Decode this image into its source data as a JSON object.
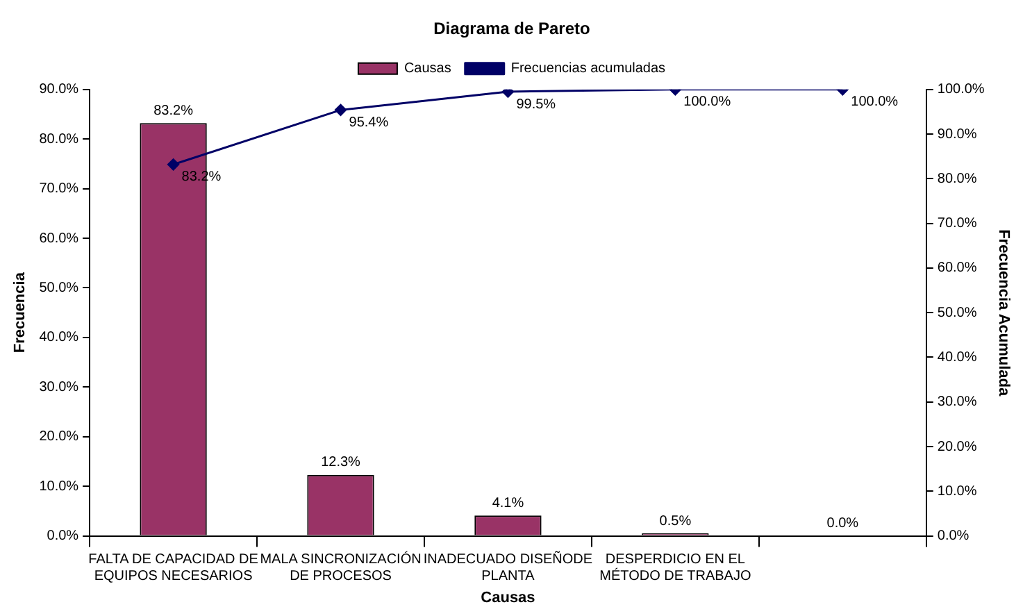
{
  "chart_data": {
    "type": "bar",
    "title": "Diagrama de Pareto",
    "xlabel": "Causas",
    "ylabel": "Frecuencia",
    "y2label": "Frecuencia Acumulada",
    "categories": [
      "FALTA DE CAPACIDAD DE EQUIPOS NECESARIOS",
      "MALA SINCRONIZACIÓN DE PROCESOS",
      "INADECUADO DISEÑODE PLANTA",
      "DESPERDICIO EN EL MÉTODO DE TRABAJO",
      null
    ],
    "series": [
      {
        "name": "Causas",
        "color": "#993366",
        "values": [
          83.2,
          12.3,
          4.1,
          0.5,
          0.0
        ],
        "value_labels": [
          "83.2%",
          "12.3%",
          "4.1%",
          "0.5%",
          "0.0%"
        ]
      },
      {
        "name": "Frecuencias acumuladas",
        "type": "line",
        "axis": "y2",
        "color": "#000066",
        "marker": "diamond",
        "values": [
          83.2,
          95.4,
          99.5,
          100.0,
          100.0
        ],
        "value_labels": [
          "83.2%",
          "95.4%",
          "99.5%",
          "100.0%",
          "100.0%"
        ]
      }
    ],
    "ylim": [
      0,
      90
    ],
    "yticks": [
      {
        "value": 0,
        "label": "0.0%"
      },
      {
        "value": 10,
        "label": "10.0%"
      },
      {
        "value": 20,
        "label": "20.0%"
      },
      {
        "value": 30,
        "label": "30.0%"
      },
      {
        "value": 40,
        "label": "40.0%"
      },
      {
        "value": 50,
        "label": "50.0%"
      },
      {
        "value": 60,
        "label": "60.0%"
      },
      {
        "value": 70,
        "label": "70.0%"
      },
      {
        "value": 80,
        "label": "80.0%"
      },
      {
        "value": 90,
        "label": "90.0%"
      }
    ],
    "y2lim": [
      0,
      100
    ],
    "y2ticks": [
      {
        "value": 0,
        "label": "0.0%"
      },
      {
        "value": 10,
        "label": "10.0%"
      },
      {
        "value": 20,
        "label": "20.0%"
      },
      {
        "value": 30,
        "label": "30.0%"
      },
      {
        "value": 40,
        "label": "40.0%"
      },
      {
        "value": 50,
        "label": "50.0%"
      },
      {
        "value": 60,
        "label": "60.0%"
      },
      {
        "value": 70,
        "label": "70.0%"
      },
      {
        "value": 80,
        "label": "80.0%"
      },
      {
        "value": 90,
        "label": "90.0%"
      },
      {
        "value": 100,
        "label": "100.0%"
      }
    ],
    "legend": "top",
    "grid": false
  }
}
